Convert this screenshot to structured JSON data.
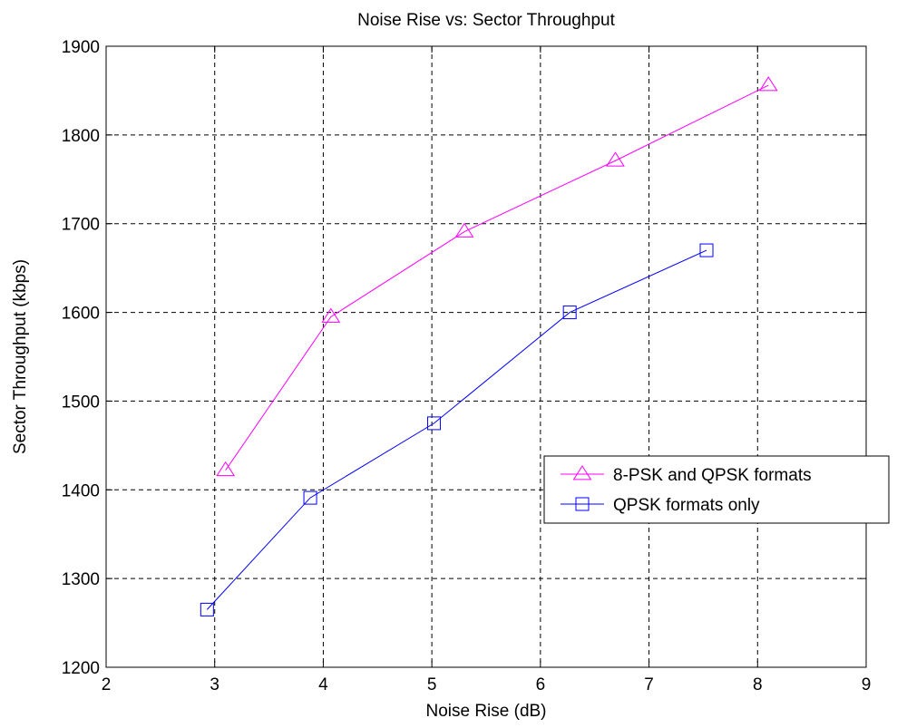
{
  "chart_data": {
    "type": "line",
    "title": "Noise Rise vs: Sector Throughput",
    "xlabel": "Noise Rise (dB)",
    "ylabel": "Sector Throughput (kbps)",
    "xlim": [
      2,
      9
    ],
    "ylim": [
      1200,
      1900
    ],
    "xticks": [
      2,
      3,
      4,
      5,
      6,
      7,
      8,
      9
    ],
    "yticks": [
      1200,
      1300,
      1400,
      1500,
      1600,
      1700,
      1800,
      1900
    ],
    "grid": true,
    "legend_position": "right",
    "series": [
      {
        "name": "8-PSK and QPSK formats",
        "color": "#ff00ff",
        "marker": "triangle",
        "x": [
          3.1,
          4.07,
          5.3,
          6.69,
          8.1
        ],
        "y": [
          1422,
          1595,
          1691,
          1771,
          1856
        ]
      },
      {
        "name": "QPSK formats only",
        "color": "#0000ff",
        "marker": "square",
        "x": [
          2.93,
          3.88,
          5.02,
          6.27,
          7.53
        ],
        "y": [
          1265,
          1391,
          1475,
          1600,
          1670
        ]
      }
    ]
  }
}
